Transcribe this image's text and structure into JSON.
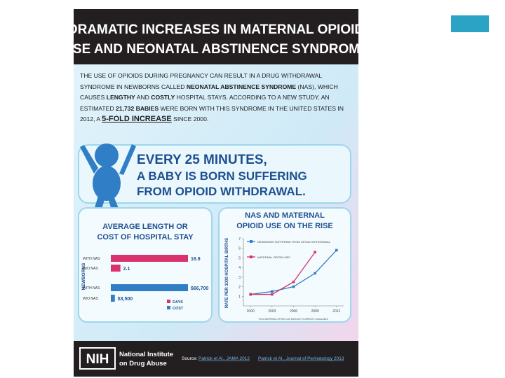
{
  "header": {
    "title_lines": [
      "DRAMATIC INCREASES IN MATERNAL OPIOID",
      "USE AND NEONATAL ABSTINENCE SYNDROME"
    ]
  },
  "intro": {
    "segments": [
      {
        "text": "THE USE OF OPIOIDS DURING PREGNANCY CAN RESULT IN A DRUG WITHDRAWAL SYNDROME IN NEWBORNS CALLED ",
        "weight": "normal"
      },
      {
        "text": "NEONATAL ABSTINENCE SYNDROME",
        "weight": "bold"
      },
      {
        "text": " (NAS), WHICH CAUSES ",
        "weight": "normal"
      },
      {
        "text": "LENGTHY",
        "weight": "bold"
      },
      {
        "text": " AND ",
        "weight": "normal"
      },
      {
        "text": "COSTLY",
        "weight": "bold"
      },
      {
        "text": " HOSPITAL STAYS. ACCORDING TO A NEW STUDY, AN ESTIMATED ",
        "weight": "normal"
      },
      {
        "text": "21,732 BABIES",
        "weight": "bold"
      },
      {
        "text": " WERE BORN WITH THIS SYNDROME IN THE UNITED STATES IN 2012, A ",
        "weight": "normal"
      },
      {
        "text": "5-FOLD INCREASE",
        "weight": "large"
      },
      {
        "text": " SINCE 2000.",
        "weight": "normal"
      }
    ]
  },
  "banner": {
    "lines": [
      "EVERY 25 MINUTES,",
      "A BABY IS BORN SUFFERING",
      "FROM OPIOID WITHDRAWAL."
    ]
  },
  "hospital_stay": {
    "title_lines": [
      "AVERAGE LENGTH OR",
      "COST OF HOSPITAL STAY"
    ],
    "axis_label": "NEWBORNS",
    "groups": [
      {
        "name": "DAYS",
        "color": "#d8336d",
        "categories": [
          "WITH NAS",
          "W/O NAS"
        ],
        "values": [
          16.9,
          2.1
        ]
      },
      {
        "name": "COST",
        "color": "#2f7ec6",
        "categories": [
          "WITH NAS",
          "W/O NAS"
        ],
        "values": [
          66700,
          3500
        ],
        "value_labels": [
          "$66,700",
          "$3,500"
        ]
      }
    ]
  },
  "chart_data": {
    "type": "line",
    "title_lines": [
      "NAS AND MATERNAL",
      "OPIOID USE ON THE RISE"
    ],
    "y_label": "RATE PER 1000 HOSPITAL BIRTHS",
    "x": [
      2000,
      2003,
      2006,
      2009,
      2012
    ],
    "series": [
      {
        "name": "NEWBORNS SUFFERING FROM OPIOID WITHDRAWAL",
        "color": "#2f7ec6",
        "values": [
          1.2,
          1.5,
          2.0,
          3.4,
          5.8
        ]
      },
      {
        "name": "MATERNAL OPIOID USE*",
        "color": "#d8336d",
        "values": [
          1.2,
          1.2,
          2.5,
          5.6,
          null
        ]
      }
    ],
    "xlim": [
      1999,
      2013
    ],
    "xticks": [
      2000,
      2003,
      2006,
      2009,
      2012
    ],
    "ylim": [
      0,
      7
    ],
    "yticks": [
      1,
      2,
      3,
      4,
      5,
      6,
      7
    ],
    "footnote": "*2012 MATERNAL OPIOID USE DATA NOT CURRENTLY AVAILABLE"
  },
  "footer": {
    "logo": "NIH",
    "org_lines": [
      "National Institute",
      "on Drug Abuse"
    ],
    "source_label": "Source:",
    "sources": [
      "Patrick et Al., JAMA 2012",
      "Patrick et Al., Journal of Perinatology 2013"
    ]
  }
}
